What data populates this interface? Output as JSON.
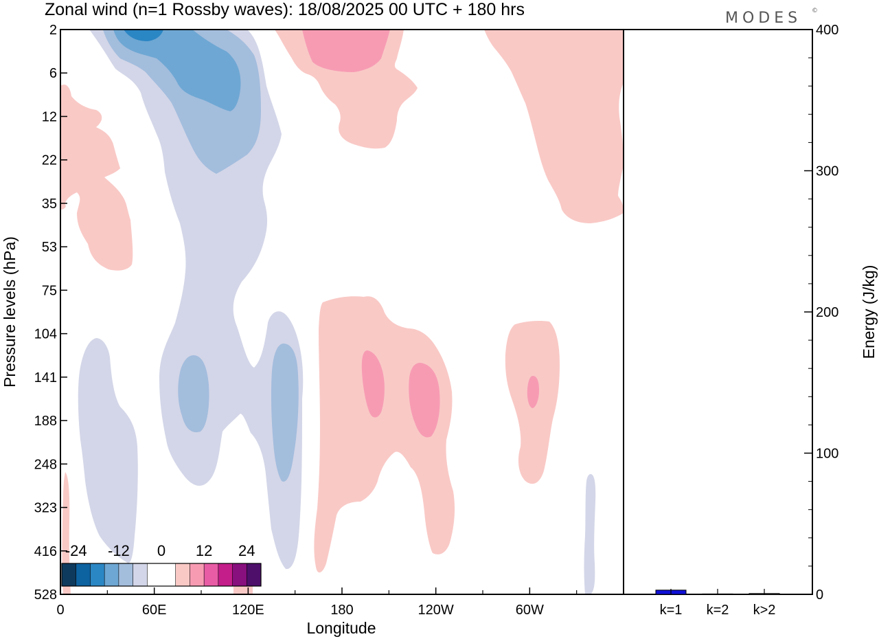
{
  "title": "Zonal wind (n=1 Rossby waves):  18/08/2025  00 UTC  + 180 hrs",
  "logo": "MODES",
  "logo_mark": "©",
  "chart_data": [
    {
      "type": "heatmap",
      "title": "Zonal wind (n=1 Rossby waves):  18/08/2025  00 UTC  + 180 hrs",
      "xlabel": "Longitude",
      "ylabel": "Pressure levels (hPa)",
      "x_ticks": [
        {
          "lon": 0,
          "label": "0"
        },
        {
          "lon": 60,
          "label": "60E"
        },
        {
          "lon": 120,
          "label": "120E"
        },
        {
          "lon": 180,
          "label": "180"
        },
        {
          "lon": 240,
          "label": "120W"
        },
        {
          "lon": 300,
          "label": "60W"
        }
      ],
      "xlim": [
        0,
        360
      ],
      "y_levels": [
        "2",
        "6",
        "12",
        "22",
        "35",
        "53",
        "75",
        "104",
        "141",
        "188",
        "248",
        "323",
        "416",
        "528"
      ],
      "colorbar": {
        "labels": [
          {
            "pos": 0,
            "text": "-24"
          },
          {
            "pos": 3,
            "text": "-12"
          },
          {
            "pos": 6,
            "text": "0"
          },
          {
            "pos": 9,
            "text": "12"
          },
          {
            "pos": 12,
            "text": "24"
          }
        ],
        "colors": [
          "#0e3a5e",
          "#0d62a0",
          "#2b86c4",
          "#6ea7d3",
          "#a3bddd",
          "#d3d6e8",
          "#ffffff",
          "#ffffff",
          "#f9c9c6",
          "#f79bb3",
          "#e85ca5",
          "#c31e8a",
          "#880f7e",
          "#4e0f6b"
        ]
      },
      "regions": [
        {
          "id": "top-blue-outer",
          "color": "#d3d6e8",
          "level": -3,
          "lon_range": [
            20,
            140
          ],
          "p_range": [
            2,
            528
          ]
        },
        {
          "id": "top-blue-mid",
          "color": "#a3bddd",
          "level": -6,
          "lon_range": [
            35,
            122
          ],
          "p_range": [
            2,
            24
          ]
        },
        {
          "id": "top-blue-core",
          "color": "#6ea7d3",
          "level": -9,
          "lon_range": [
            35,
            115
          ],
          "p_range": [
            2,
            12
          ]
        },
        {
          "id": "top-blue-peak",
          "color": "#2b86c4",
          "level": -12,
          "lon_range": [
            38,
            60
          ],
          "p_range": [
            2,
            3
          ]
        },
        {
          "id": "left-pink",
          "color": "#f9c9c6",
          "level": 3,
          "lon_range": [
            0,
            40
          ],
          "p_range": [
            5,
            60
          ]
        },
        {
          "id": "top-pink",
          "color": "#f9c9c6",
          "level": 3,
          "lon_range": [
            145,
            220
          ],
          "p_range": [
            2,
            22
          ]
        },
        {
          "id": "top-pink-core",
          "color": "#f79bb3",
          "level": 6,
          "lon_range": [
            160,
            210
          ],
          "p_range": [
            2,
            4
          ]
        },
        {
          "id": "upper-right-pink",
          "color": "#f9c9c6",
          "level": 3,
          "lon_range": [
            275,
            360
          ],
          "p_range": [
            2,
            40
          ]
        },
        {
          "id": "mid-blue-left",
          "color": "#d3d6e8",
          "level": -3,
          "lon_range": [
            10,
            50
          ],
          "p_range": [
            104,
            416
          ]
        },
        {
          "id": "mid-blue-core-1",
          "color": "#a3bddd",
          "level": -6,
          "lon_range": [
            75,
            95
          ],
          "p_range": [
            120,
            190
          ]
        },
        {
          "id": "mid-blue-core-2",
          "color": "#a3bddd",
          "level": -6,
          "lon_range": [
            135,
            155
          ],
          "p_range": [
            110,
            260
          ]
        },
        {
          "id": "mid-pink",
          "color": "#f9c9c6",
          "level": 3,
          "lon_range": [
            165,
            265
          ],
          "p_range": [
            75,
            470
          ]
        },
        {
          "id": "mid-pink-core-1",
          "color": "#f79bb3",
          "level": 6,
          "lon_range": [
            195,
            205
          ],
          "p_range": [
            120,
            190
          ]
        },
        {
          "id": "mid-pink-core-2",
          "color": "#f79bb3",
          "level": 6,
          "lon_range": [
            222,
            242
          ],
          "p_range": [
            125,
            210
          ]
        },
        {
          "id": "right-pink",
          "color": "#f9c9c6",
          "level": 3,
          "lon_range": [
            285,
            320
          ],
          "p_range": [
            104,
            260
          ]
        },
        {
          "id": "right-pink-core",
          "color": "#f79bb3",
          "level": 6,
          "lon_range": [
            299,
            306
          ],
          "p_range": [
            135,
            170
          ]
        },
        {
          "id": "far-right-blue",
          "color": "#d3d6e8",
          "level": -3,
          "lon_range": [
            336,
            342
          ],
          "p_range": [
            230,
            528
          ]
        }
      ]
    },
    {
      "type": "bar",
      "categories": [
        "k=1",
        "k=2",
        "k>2"
      ],
      "values": [
        3,
        0.3,
        0.6
      ],
      "colors": [
        "#1010d8",
        "#888888",
        "#888888"
      ],
      "ylabel": "Energy (J/kg)",
      "ylim": [
        0,
        400
      ],
      "y_ticks": [
        "0",
        "100",
        "200",
        "300",
        "400"
      ]
    }
  ]
}
